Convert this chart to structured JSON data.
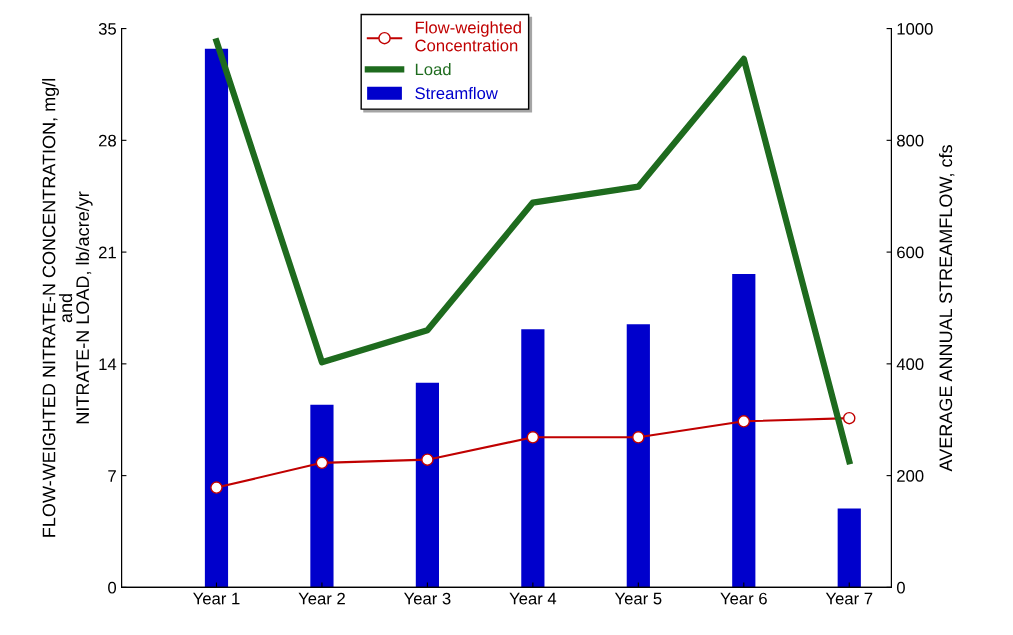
{
  "chart_data": {
    "type": "line",
    "ylabel": "FLOW-WEIGHTED NITRATE-N CONCENTRATION, mg/l\nand\nNITRATE-N LOAD, lb/acre/yr",
    "y2label": "AVERAGE ANNUAL STREAMFLOW, cfs",
    "categories": [
      "Year 1",
      "Year 2",
      "Year 3",
      "Year 4",
      "Year 5",
      "Year 6",
      "Year 7"
    ],
    "series": [
      {
        "name": "Flow-weighted\nConcentration",
        "color": "#c00000",
        "marker": "circle",
        "values": [
          6.25,
          7.8,
          8.0,
          9.4,
          9.4,
          10.4,
          10.6
        ]
      },
      {
        "name": "Load",
        "color": "#1e6b1e",
        "values": [
          34.2,
          14.1,
          16.1,
          24.1,
          25.1,
          33.1,
          7.9
        ]
      },
      {
        "name": "Streamflow",
        "type": "bar",
        "axis": "y2",
        "color": "#0000cc",
        "values": [
          964,
          327,
          366,
          462,
          471,
          561,
          141
        ]
      }
    ],
    "ylim": [
      0,
      35
    ],
    "yticks": [
      0,
      7,
      14,
      21,
      28,
      35
    ],
    "y2lim": [
      0,
      1000
    ],
    "y2ticks": [
      0,
      200,
      400,
      600,
      800,
      1000
    ],
    "grid": false,
    "legend": "top"
  }
}
